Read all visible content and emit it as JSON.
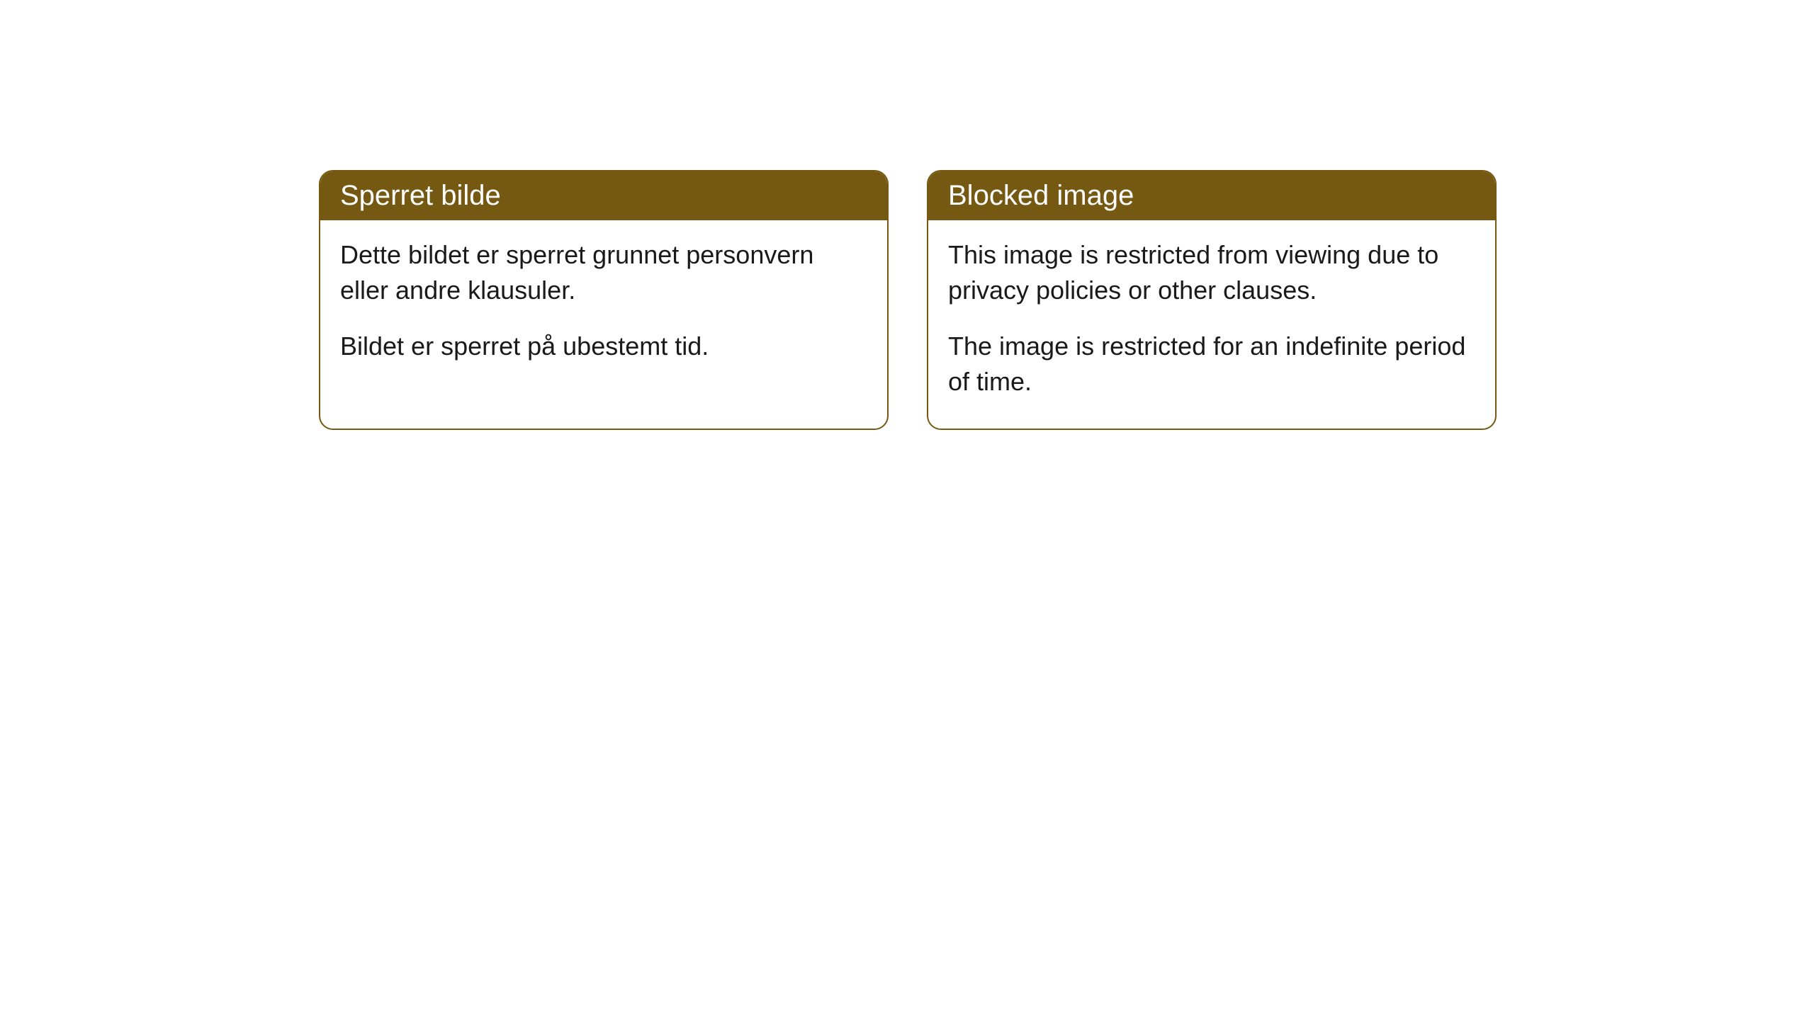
{
  "cards": [
    {
      "title": "Sperret bilde",
      "paragraph1": "Dette bildet er sperret grunnet personvern eller andre klausuler.",
      "paragraph2": "Bildet er sperret på ubestemt tid."
    },
    {
      "title": "Blocked image",
      "paragraph1": "This image is restricted from viewing due to privacy policies or other clauses.",
      "paragraph2": "The image is restricted for an indefinite period of time."
    }
  ],
  "styling": {
    "header_background": "#755811",
    "header_text_color": "#ffffff",
    "border_color": "#755811",
    "body_background": "#ffffff",
    "body_text_color": "#1a1a1a",
    "border_radius": 20,
    "header_fontsize": 40,
    "body_fontsize": 36
  }
}
